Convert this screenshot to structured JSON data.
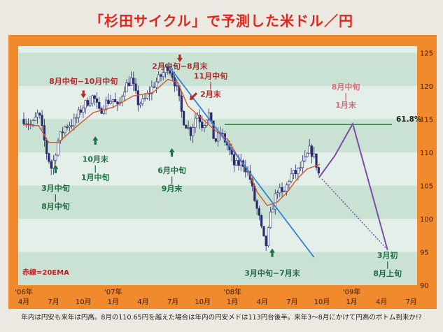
{
  "title": "「杉田サイクル」で予測した米ドル／円",
  "caption": "年内は円安も来年は円高。8月の110.65円を越えた場合は年内の円安メドは113円台後半。来年3〜8月にかけて円高のボトム到来か!?",
  "chart_data": {
    "type": "candlestick",
    "title": "「杉田サイクル」で予測した米ドル／円",
    "ylim": [
      90,
      126
    ],
    "y_ticks": [
      90,
      95,
      100,
      105,
      110,
      115,
      120,
      125
    ],
    "x_ticks": [
      {
        "t": 0,
        "top": "'06年",
        "bottom": "4月"
      },
      {
        "t": 3,
        "top": "",
        "bottom": "7月"
      },
      {
        "t": 6,
        "top": "",
        "bottom": "10月"
      },
      {
        "t": 9,
        "top": "'07年",
        "bottom": "1月"
      },
      {
        "t": 12,
        "top": "",
        "bottom": "4月"
      },
      {
        "t": 15,
        "top": "",
        "bottom": "7月"
      },
      {
        "t": 18,
        "top": "",
        "bottom": "10月"
      },
      {
        "t": 21,
        "top": "'08年",
        "bottom": "1月"
      },
      {
        "t": 24,
        "top": "",
        "bottom": "4月"
      },
      {
        "t": 27,
        "top": "",
        "bottom": "7月"
      },
      {
        "t": 30,
        "top": "",
        "bottom": "10月"
      },
      {
        "t": 33,
        "top": "'09年",
        "bottom": "1月"
      },
      {
        "t": 36,
        "top": "",
        "bottom": "4月"
      },
      {
        "t": 39,
        "top": "",
        "bottom": "7月"
      }
    ],
    "price_path": [
      [
        0,
        115
      ],
      [
        0.8,
        114
      ],
      [
        1.5,
        116
      ],
      [
        2.3,
        110
      ],
      [
        2.8,
        107.5
      ],
      [
        3.5,
        112
      ],
      [
        4.2,
        114
      ],
      [
        5,
        114.5
      ],
      [
        6,
        117
      ],
      [
        7,
        118.5
      ],
      [
        7.6,
        116
      ],
      [
        8.2,
        117.5
      ],
      [
        9,
        118
      ],
      [
        9.5,
        116.5
      ],
      [
        10,
        119.5
      ],
      [
        10.8,
        121
      ],
      [
        11.5,
        117.5
      ],
      [
        12,
        117.5
      ],
      [
        13,
        120
      ],
      [
        13.8,
        121.5
      ],
      [
        14.5,
        123
      ],
      [
        15,
        121.5
      ],
      [
        15.5,
        119
      ],
      [
        16,
        115
      ],
      [
        16.8,
        113
      ],
      [
        17.4,
        116
      ],
      [
        18,
        114
      ],
      [
        18.6,
        116
      ],
      [
        19.2,
        111.5
      ],
      [
        19.8,
        113
      ],
      [
        20.5,
        111
      ],
      [
        21.2,
        108
      ],
      [
        22,
        108.5
      ],
      [
        22.7,
        106.5
      ],
      [
        23.2,
        103
      ],
      [
        23.7,
        100
      ],
      [
        24.1,
        97
      ],
      [
        24.4,
        96
      ],
      [
        24.9,
        101
      ],
      [
        25.5,
        104.5
      ],
      [
        26.1,
        103.5
      ],
      [
        26.8,
        106.5
      ],
      [
        27.5,
        107
      ],
      [
        28.2,
        108.5
      ],
      [
        28.8,
        110.5
      ],
      [
        29.3,
        109
      ],
      [
        29.8,
        106
      ]
    ],
    "ema_label": "赤線=20EMA",
    "ema_path": [
      [
        0,
        114.2
      ],
      [
        1.5,
        114
      ],
      [
        2.5,
        111.5
      ],
      [
        3.5,
        111.5
      ],
      [
        5,
        113.5
      ],
      [
        7,
        116
      ],
      [
        9,
        116.8
      ],
      [
        11,
        118.5
      ],
      [
        13,
        119
      ],
      [
        14.5,
        121
      ],
      [
        15.5,
        120.5
      ],
      [
        16.5,
        117
      ],
      [
        18,
        115
      ],
      [
        19.5,
        113
      ],
      [
        20.5,
        112
      ],
      [
        21.5,
        109.5
      ],
      [
        22.5,
        107.5
      ],
      [
        23.5,
        104
      ],
      [
        24.5,
        102
      ],
      [
        25.5,
        102.5
      ],
      [
        26.5,
        104
      ],
      [
        27.5,
        106
      ],
      [
        28.5,
        107.5
      ],
      [
        29.8,
        108.2
      ]
    ],
    "fib_level": {
      "value": 114.2,
      "label": "61.8%"
    },
    "trendline": {
      "from": [
        14.6,
        123
      ],
      "to": [
        29.2,
        94.2
      ]
    },
    "forecast_solid": [
      [
        29.7,
        106.2
      ],
      [
        31.3,
        109.5
      ],
      [
        33.1,
        114.3
      ],
      [
        36.6,
        95.3
      ]
    ],
    "forecast_dotted": [
      [
        30,
        106
      ],
      [
        36.5,
        95.5
      ]
    ],
    "annotations": [
      {
        "t": 3.2,
        "lines": [
          "3月中旬",
          "|",
          "8月中旬"
        ],
        "y": 104.2,
        "arrow": "up",
        "color": "#1f6e45",
        "arrow_y": 107.6
      },
      {
        "t": 6,
        "lines": [
          "8月中旬−10月中旬"
        ],
        "y": 120.3,
        "arrow": "down",
        "color": "#b22a2a",
        "arrow_y": 118.7
      },
      {
        "t": 7.2,
        "lines": [
          "10月末",
          "|",
          "1月中旬"
        ],
        "y": 108.6,
        "arrow": "up",
        "color": "#1f6e45",
        "arrow_y": 111.9
      },
      {
        "t": 15.7,
        "lines": [
          "2月中旬−8月末"
        ],
        "y": 122.6,
        "arrow": "down",
        "color": "#b22a2a",
        "arrow_y": 124.1
      },
      {
        "t": 18.8,
        "lines": [
          "11月中旬",
          "|",
          "2月末"
        ],
        "y": 121.1,
        "arrow": "downleft",
        "color": "#b22a2a",
        "arrow_y": 118.3
      },
      {
        "t": 14.9,
        "lines": [
          "6月中旬",
          "|",
          "9月末"
        ],
        "y": 106.9,
        "arrow": "up",
        "color": "#1f6e45",
        "arrow_y": 110.1
      },
      {
        "t": 25,
        "lines": [
          "3月中旬−7月末"
        ],
        "y": 91.4,
        "arrow": "up",
        "color": "#1f6e45",
        "arrow_y": 95
      },
      {
        "t": 32.4,
        "lines": [
          "8月中旬",
          "|",
          "1月末"
        ],
        "y": 119.5,
        "arrow": null,
        "color": "#d96a7a"
      },
      {
        "t": 36.6,
        "lines": [
          "3月初",
          "|",
          "8月上旬"
        ],
        "y": 94.1,
        "arrow": null,
        "color": "#1f6e45"
      }
    ]
  }
}
